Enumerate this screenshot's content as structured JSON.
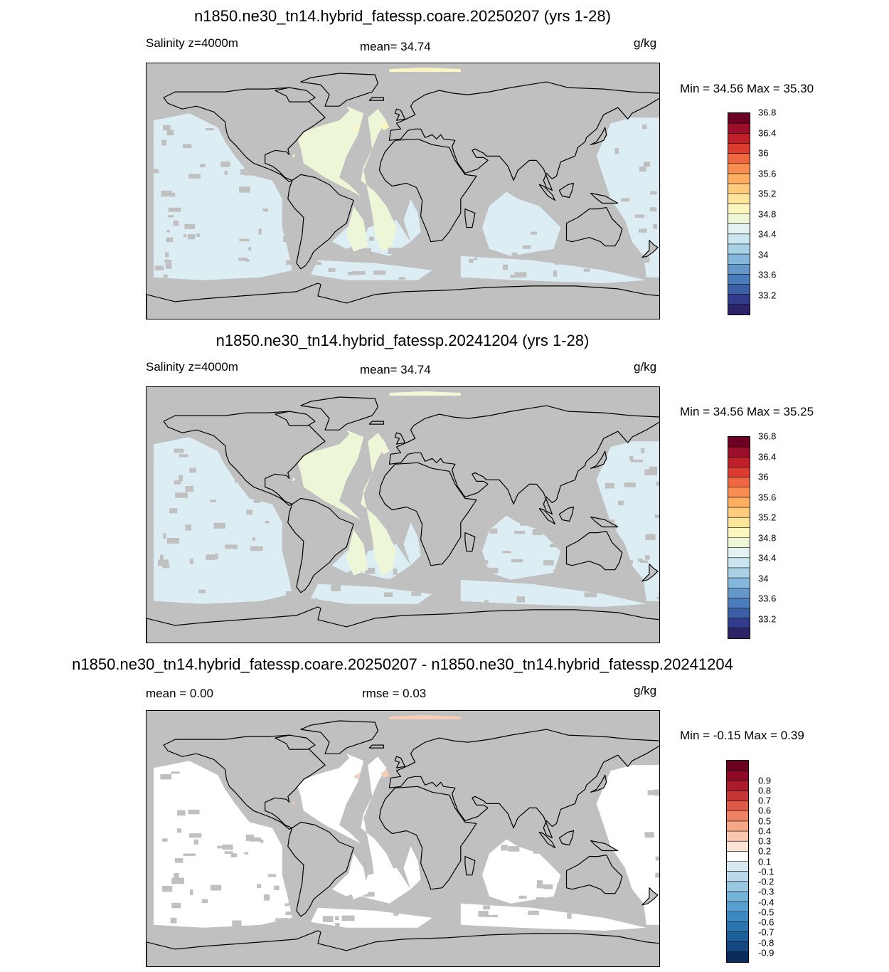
{
  "panels": [
    {
      "title": "n1850.ne30_tn14.hybrid_fatessp.coare.20250207 (yrs 1-28)",
      "left_label": "Salinity z=4000m",
      "center_label": "mean=  34.74",
      "units": "g/kg",
      "minmax": "Min =  34.56 Max =  35.30",
      "colorbar": {
        "colors": [
          "#2d2467",
          "#333c8c",
          "#3b5ea5",
          "#4b7cbb",
          "#6598c9",
          "#85b6db",
          "#a8d1e6",
          "#cae6f0",
          "#e2f1f1",
          "#eef6d7",
          "#fcf6be",
          "#fde699",
          "#fecc7c",
          "#fdae61",
          "#f88d52",
          "#ef6740",
          "#dc3b2f",
          "#c11f2a",
          "#9c0f2a",
          "#6b0024"
        ],
        "tick_labels": [
          "33.2",
          "33.6",
          "34",
          "34.4",
          "34.8",
          "35.2",
          "35.6",
          "36",
          "36.4",
          "36.8"
        ]
      },
      "ocean_colors": {
        "deep": "#dceef4",
        "atlantic": "#eef6d8",
        "hi": "#fbf5c0"
      }
    },
    {
      "title": "n1850.ne30_tn14.hybrid_fatessp.20241204 (yrs 1-28)",
      "left_label": "Salinity z=4000m",
      "center_label": "mean=  34.74",
      "units": "g/kg",
      "minmax": "Min =  34.56 Max =  35.25",
      "colorbar": {
        "colors": [
          "#2d2467",
          "#333c8c",
          "#3b5ea5",
          "#4b7cbb",
          "#6598c9",
          "#85b6db",
          "#a8d1e6",
          "#cae6f0",
          "#e2f1f1",
          "#eef6d7",
          "#fcf6be",
          "#fde699",
          "#fecc7c",
          "#fdae61",
          "#f88d52",
          "#ef6740",
          "#dc3b2f",
          "#c11f2a",
          "#9c0f2a",
          "#6b0024"
        ],
        "tick_labels": [
          "33.2",
          "33.6",
          "34",
          "34.4",
          "34.8",
          "35.2",
          "35.6",
          "36",
          "36.4",
          "36.8"
        ]
      },
      "ocean_colors": {
        "deep": "#dceef4",
        "atlantic": "#eef6d8",
        "hi": "#f4f8d8"
      }
    },
    {
      "title": "n1850.ne30_tn14.hybrid_fatessp.coare.20250207 - n1850.ne30_tn14.hybrid_fatessp.20241204",
      "left_label": "mean =   0.00",
      "center_label": "rmse =   0.03",
      "units": "g/kg",
      "minmax": "Min =  -0.15 Max =   0.39",
      "colorbar": {
        "colors": [
          "#0b2d5e",
          "#14487e",
          "#1c5f9a",
          "#2a75b0",
          "#3b8bc2",
          "#569fce",
          "#75b3d8",
          "#98c8e1",
          "#b9d9ea",
          "#d7e8f1",
          "#ffffff",
          "#fde3d6",
          "#f9c7ad",
          "#f4a785",
          "#ec8163",
          "#dd5a48",
          "#c73535",
          "#ac1b2b",
          "#8e0a27",
          "#6b0020"
        ],
        "tick_labels": [
          "-0.9",
          "-0.8",
          "-0.7",
          "-0.6",
          "-0.5",
          "-0.4",
          "-0.3",
          "-0.2",
          "-0.1",
          "0.1",
          "0.2",
          "0.3",
          "0.4",
          "0.5",
          "0.6",
          "0.7",
          "0.8",
          "0.9"
        ]
      },
      "ocean_colors": {
        "deep": "#ffffff",
        "atlantic": "#ffffff",
        "hi": "#f6cdb6"
      }
    }
  ]
}
